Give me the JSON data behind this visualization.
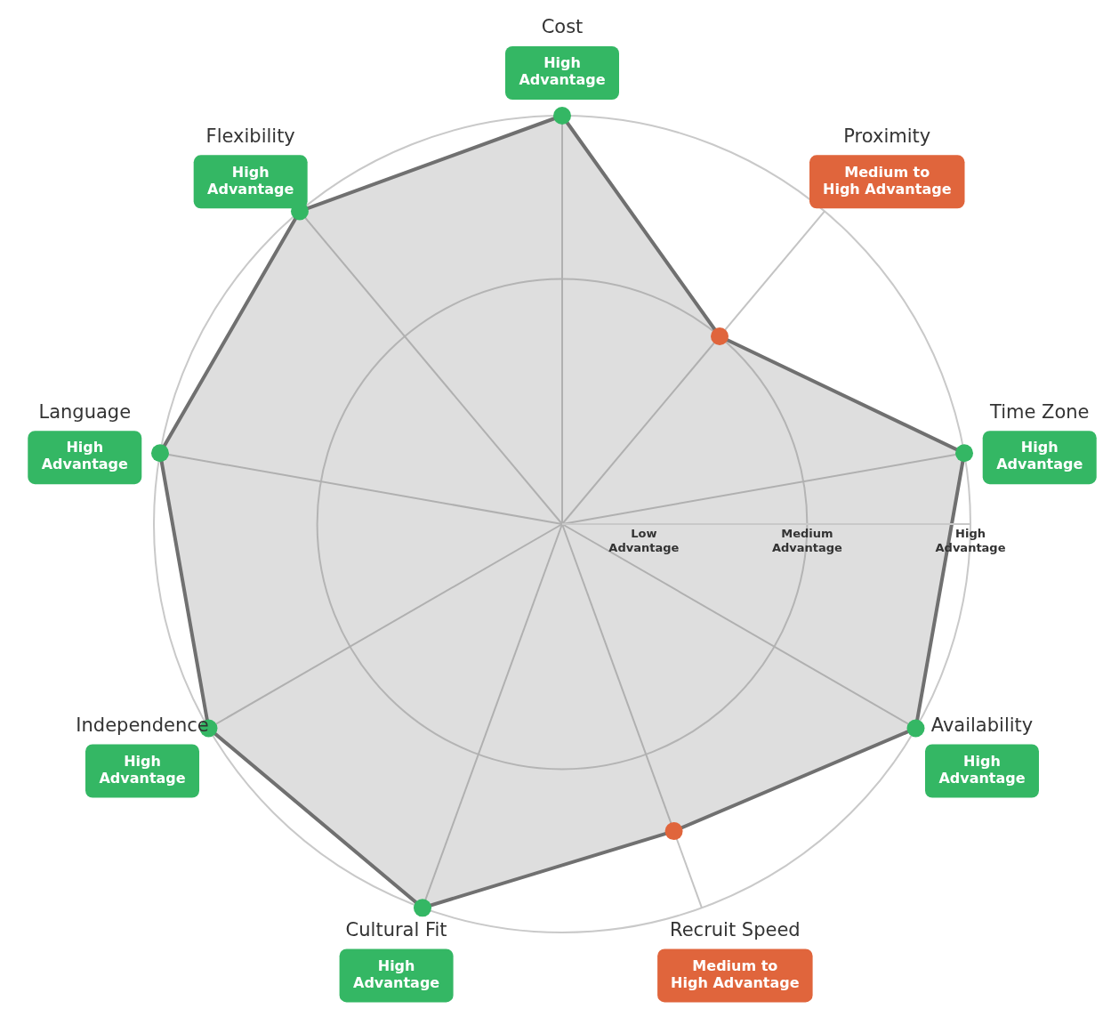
{
  "chart_data": {
    "type": "radar",
    "categories": [
      "Cost",
      "Proximity",
      "Time Zone",
      "Availability",
      "Recruit Speed",
      "Cultural Fit",
      "Independence",
      "Language",
      "Flexibility"
    ],
    "annotations": [
      "High Advantage",
      "Medium to High Advantage",
      "High Advantage",
      "High Advantage",
      "Medium to High Advantage",
      "High Advantage",
      "High Advantage",
      "High Advantage",
      "High Advantage"
    ],
    "series": [
      {
        "color": "#707070",
        "values": [
          5,
          3,
          5,
          5,
          4,
          5,
          5,
          5,
          5
        ],
        "colors": [
          "#34b764",
          "#e0653c",
          "#34b764",
          "#34b764",
          "#e0653c",
          "#34b764",
          "#34b764",
          "#34b764",
          "#34b764"
        ]
      }
    ],
    "ylim": [
      0,
      5
    ],
    "yticks": [
      {
        "value": 1,
        "label": "Low Advantage"
      },
      {
        "value": 3,
        "label": "Medium Advantage"
      },
      {
        "value": 5,
        "label": "High Advantage"
      }
    ],
    "grid": true,
    "legend": false,
    "marker": "circle"
  }
}
